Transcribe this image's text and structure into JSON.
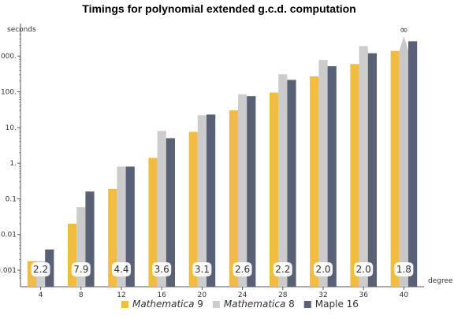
{
  "chart_data": {
    "type": "bar",
    "title": "Timings for polynomial extended g.c.d. computation",
    "ylabel": "seconds",
    "xlabel": "degree",
    "yscale": "log",
    "ylim": [
      0.0006,
      5000
    ],
    "yticks": [
      {
        "value": 0.001,
        "label": "0.001"
      },
      {
        "value": 0.01,
        "label": "0.01"
      },
      {
        "value": 0.1,
        "label": "0.1"
      },
      {
        "value": 1,
        "label": "1."
      },
      {
        "value": 10,
        "label": "10."
      },
      {
        "value": 100,
        "label": "100."
      },
      {
        "value": 1000,
        "label": "1000."
      }
    ],
    "categories": [
      "4",
      "8",
      "12",
      "16",
      "20",
      "24",
      "28",
      "32",
      "36",
      "40"
    ],
    "series": [
      {
        "name": "Mathematica 9",
        "name_italic": "Mathematica",
        "name_plain": " 9",
        "color": "#F0BC42",
        "values": [
          0.0018,
          0.02,
          0.19,
          1.4,
          7.5,
          30,
          95,
          270,
          600,
          1400
        ]
      },
      {
        "name": "Mathematica 8",
        "name_italic": "Mathematica",
        "name_plain": " 8",
        "color": "#CCCCCC",
        "values": [
          0.0018,
          0.058,
          0.8,
          8,
          22,
          85,
          310,
          780,
          1900,
          null
        ]
      },
      {
        "name": "Maple 16",
        "name_italic": "",
        "name_plain": "Maple 16",
        "color": "#5A6075",
        "values": [
          0.0038,
          0.16,
          0.8,
          5,
          23,
          75,
          215,
          520,
          1200,
          2600
        ]
      }
    ],
    "infinity_marker": {
      "category": "40",
      "series": "Mathematica 8",
      "label": "∞",
      "color": "#C8C8C8"
    },
    "ratio_labels": [
      "2.2",
      "7.9",
      "4.4",
      "3.6",
      "3.1",
      "2.6",
      "2.2",
      "2.0",
      "2.0",
      "1.8"
    ],
    "grid": false,
    "legend_position": "bottom"
  }
}
